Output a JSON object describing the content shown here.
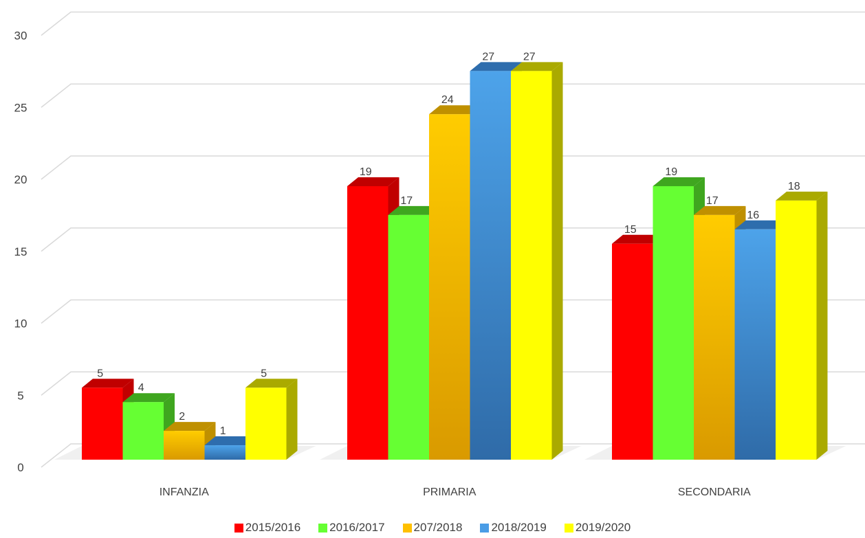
{
  "chart_data": {
    "type": "bar",
    "style": "3d-clustered-column",
    "categories": [
      "INFANZIA",
      "PRIMARIA",
      "SECONDARIA"
    ],
    "series": [
      {
        "name": "2015/2016",
        "values": [
          5,
          19,
          15
        ],
        "color": "#ff0000",
        "side": "#c00000"
      },
      {
        "name": "2016/2017",
        "values": [
          4,
          17,
          19
        ],
        "color": "#66ff33",
        "side": "#3fa61f"
      },
      {
        "name": "207/2018",
        "values": [
          2,
          24,
          17
        ],
        "color": "#ffc000",
        "side": "#bf9000",
        "gradient": true
      },
      {
        "name": "2018/2019",
        "values": [
          1,
          27,
          16
        ],
        "color": "#4a9de6",
        "side": "#2e6dad",
        "gradient": true
      },
      {
        "name": "2019/2020",
        "values": [
          5,
          27,
          18
        ],
        "color": "#ffff00",
        "side": "#aaaa00"
      }
    ],
    "y_ticks": [
      0,
      5,
      10,
      15,
      20,
      25,
      30
    ],
    "ylim": [
      0,
      30
    ],
    "grid": true,
    "legend": "bottom"
  }
}
